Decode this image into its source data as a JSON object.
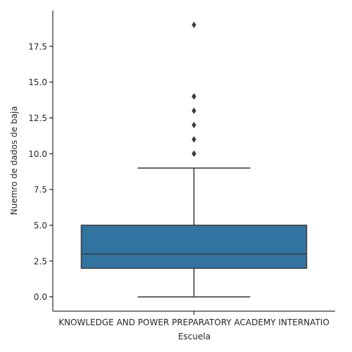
{
  "chart_data": {
    "type": "box",
    "xlabel": "Escuela",
    "ylabel": "Nuemro de dados de baja",
    "categories": [
      "KNOWLEDGE AND POWER PREPARATORY ACADEMY INTERNATIO"
    ],
    "ylim": [
      -1,
      20
    ],
    "yticks": [
      0.0,
      2.5,
      5.0,
      7.5,
      10.0,
      12.5,
      15.0,
      17.5
    ],
    "ytick_labels": [
      "0.0",
      "2.5",
      "5.0",
      "7.5",
      "10.0",
      "12.5",
      "15.0",
      "17.5"
    ],
    "box": {
      "whisker_low": 0,
      "q1": 2,
      "median": 3,
      "q3": 5,
      "whisker_high": 9,
      "outliers": [
        10,
        10,
        11,
        12,
        13,
        14,
        14,
        19
      ]
    },
    "colors": {
      "box_fill": "#3274a1",
      "line": "#3d3d3d",
      "outlier": "#3d3d3d"
    },
    "grid": false,
    "legend": "none"
  }
}
